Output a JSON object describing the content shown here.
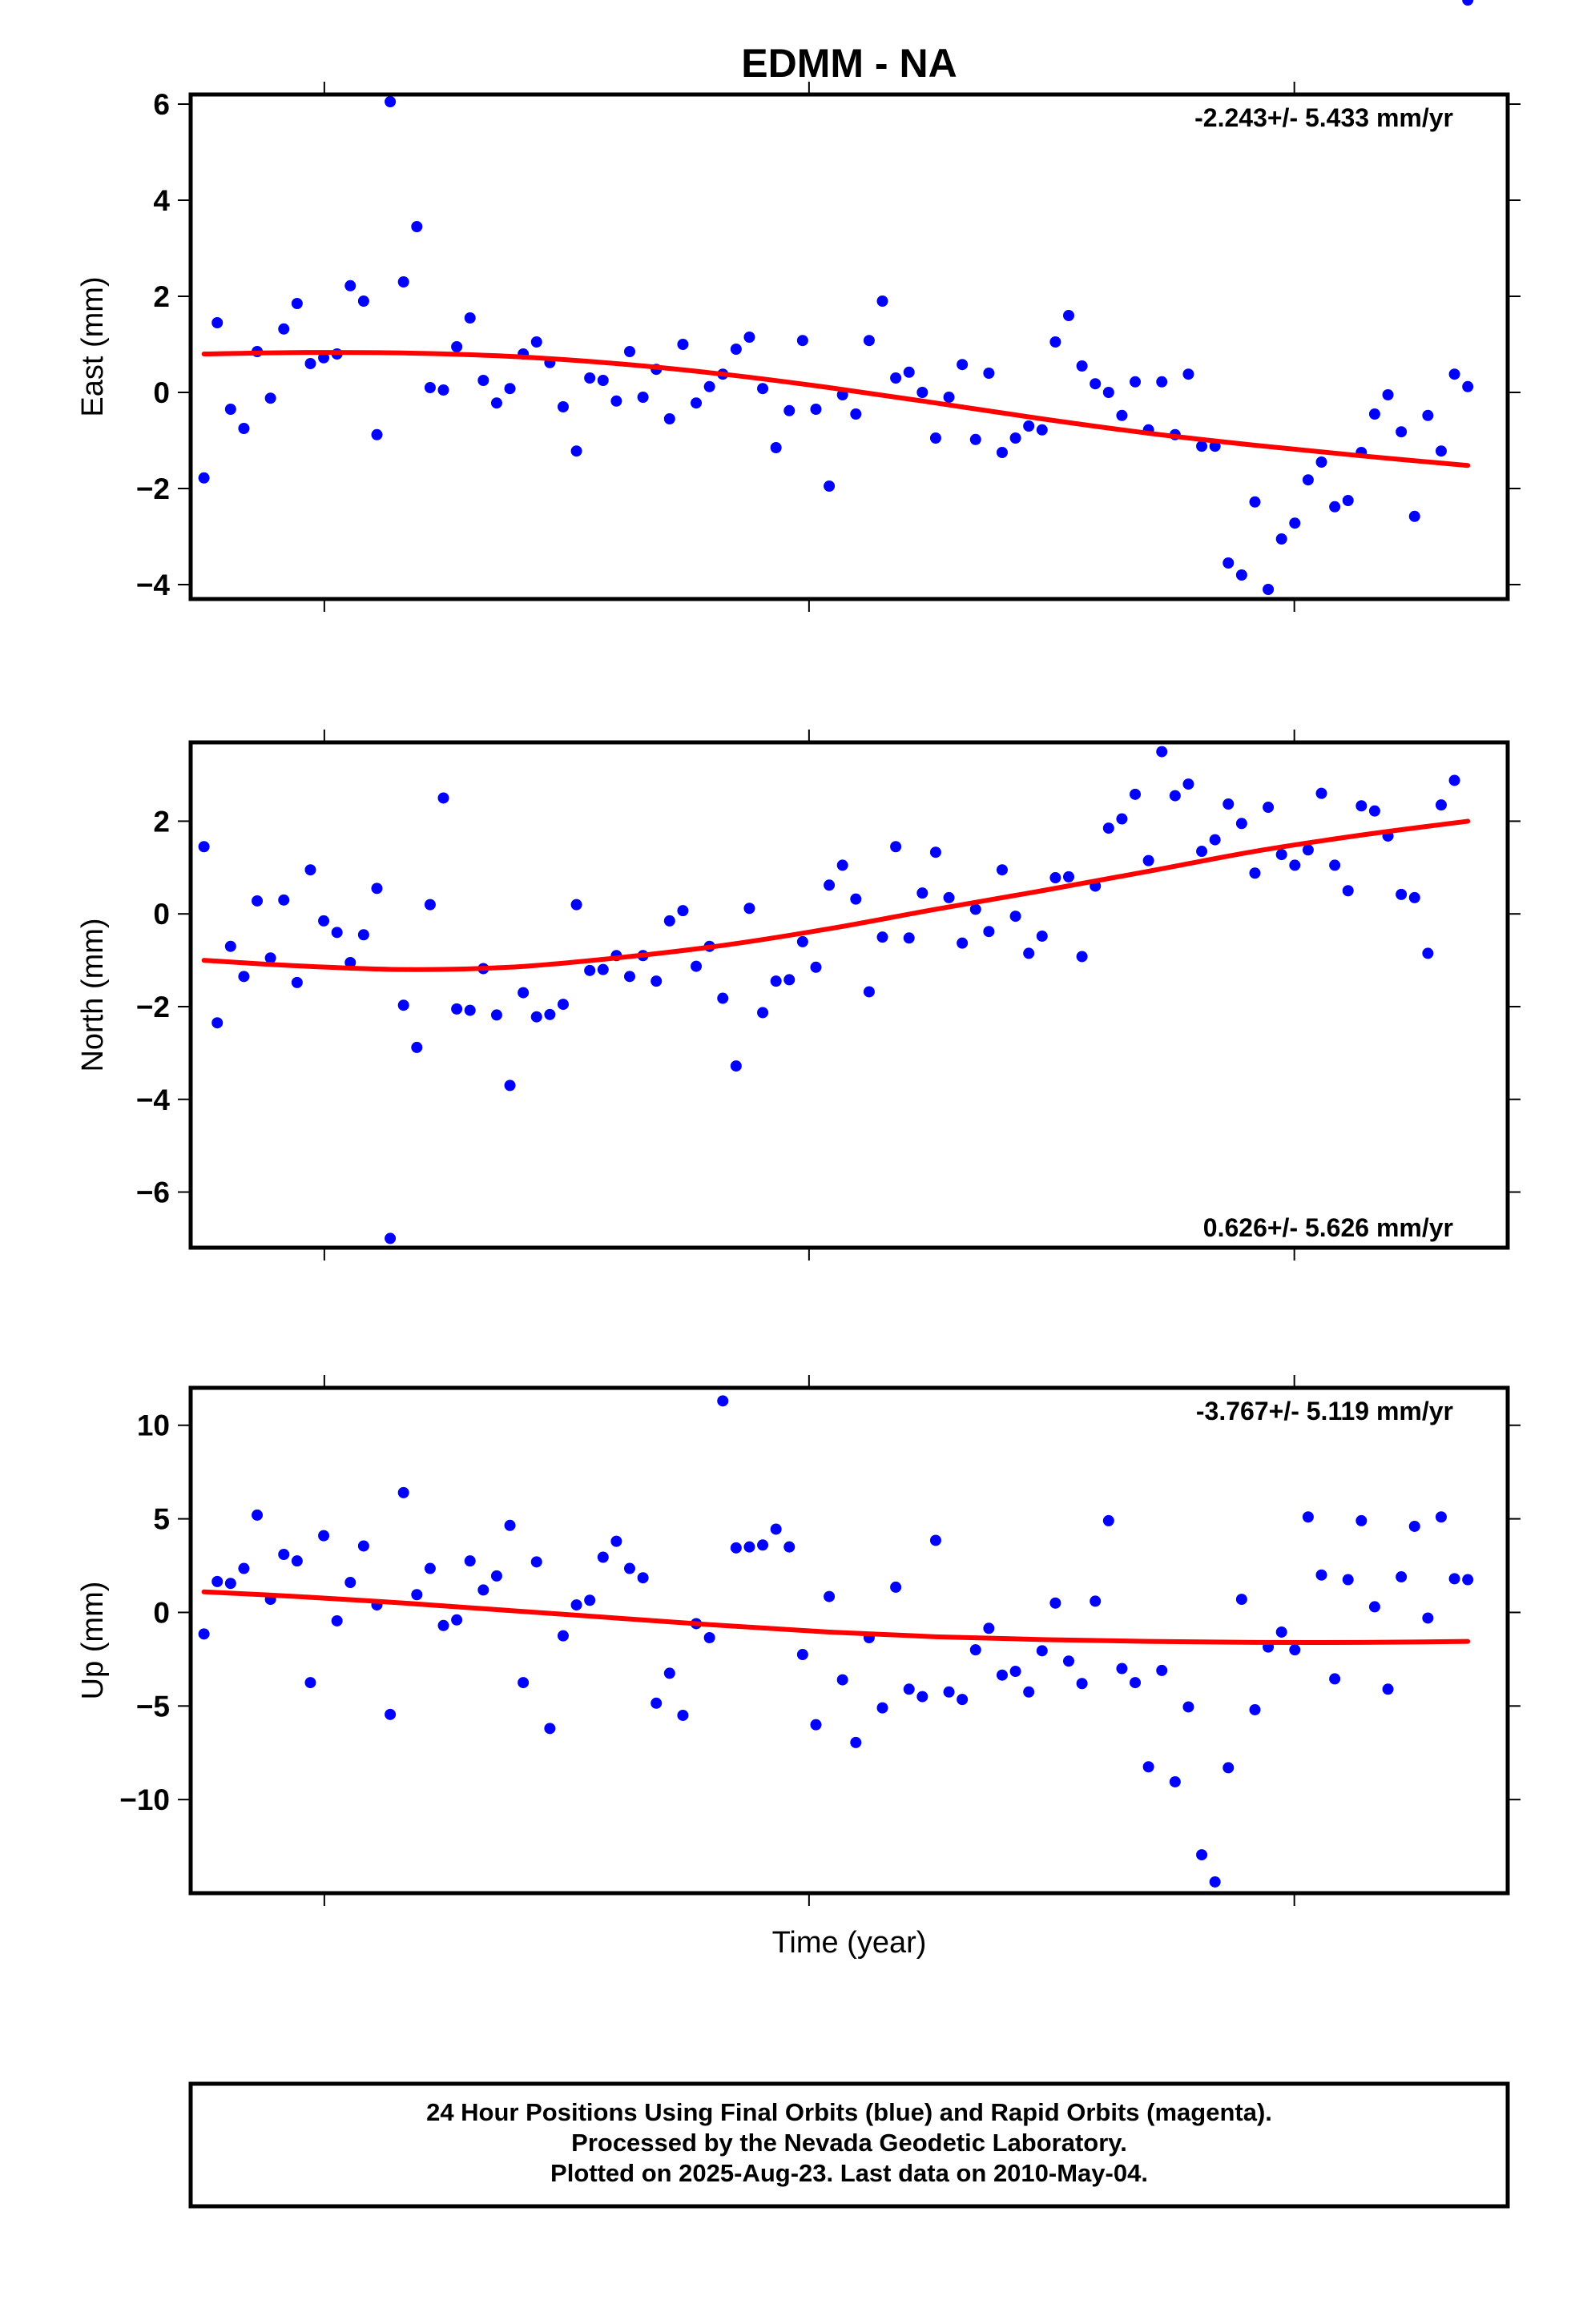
{
  "title": "EDMM - NA",
  "xlabel": "Time (year)",
  "footer": {
    "lines": [
      "24 Hour Positions Using Final Orbits (blue) and Rapid Orbits (magenta).",
      "Processed by the Nevada Geodetic Laboratory.",
      "Plotted on 2025-Aug-23. Last data on 2010-May-04."
    ]
  },
  "colors": {
    "points": "#0000ff",
    "fit": "#ff0000",
    "frame": "#000000"
  },
  "chart_data": [
    {
      "type": "scatter",
      "ylabel": "East (mm)",
      "rate": "-2.243+/- 5.433 mm/yr",
      "rate_position": "top-right",
      "ylim": [
        -4.3,
        6.2
      ],
      "yticks": [
        -4,
        -2,
        0,
        2,
        4,
        6
      ],
      "x": [
        0.25,
        0.5,
        0.75,
        1.0,
        1.25,
        1.5,
        1.75,
        2.0,
        2.25,
        2.5,
        2.75,
        3.0,
        3.25,
        3.5,
        3.75,
        4.0,
        4.25,
        4.5,
        4.75,
        5.0,
        5.25,
        5.5,
        5.75,
        6.0,
        6.25,
        6.5,
        6.75,
        7.0,
        7.25,
        7.5,
        7.75,
        8.0,
        8.25,
        8.5,
        8.75,
        9.0,
        9.25,
        9.5,
        9.75,
        10.0,
        10.25,
        10.5,
        10.75,
        11.0,
        11.25,
        11.5,
        11.75,
        12.0,
        12.25,
        12.5,
        12.75,
        13.0,
        13.25,
        13.5,
        13.75,
        14.0,
        14.25,
        14.5,
        14.75,
        15.0,
        15.25,
        15.5,
        15.75,
        16.0,
        16.25,
        16.5,
        16.75,
        17.0,
        17.25,
        17.5,
        17.75,
        18.0,
        18.25,
        18.5,
        18.75,
        19.0,
        19.25,
        19.5,
        19.75,
        20.0,
        20.25,
        20.5,
        20.75,
        21.0,
        21.25,
        21.5,
        21.75,
        22.0,
        22.25,
        22.5,
        22.75,
        23.0,
        23.25,
        23.5,
        23.75,
        24.0
      ],
      "series": [
        {
          "values": [
            -1.78,
            1.45,
            -0.35,
            -0.75,
            0.85,
            -0.12,
            1.32,
            1.85,
            0.6,
            0.72,
            0.8,
            2.22,
            1.9,
            -0.88,
            6.05,
            2.3,
            3.45,
            0.1,
            0.05,
            0.95,
            1.55,
            0.25,
            -0.22,
            0.08,
            0.8,
            1.05,
            0.62,
            -0.3,
            -1.22,
            0.3,
            0.25,
            -0.18,
            0.85,
            -0.1,
            0.48,
            -0.55,
            1.0,
            -0.22,
            0.12,
            0.38,
            0.9,
            1.15,
            0.08,
            -1.15,
            -0.38,
            1.08,
            -0.35,
            -1.95,
            -0.05,
            -0.45,
            1.08,
            1.9,
            0.3,
            0.42,
            0.0,
            -0.95,
            -0.1,
            0.58,
            -0.98,
            0.4,
            -1.25,
            -0.95,
            -0.7,
            -0.78,
            1.05,
            1.6,
            0.55,
            0.18,
            0.0,
            -0.48,
            0.22,
            -0.78,
            0.22,
            -0.88,
            0.38,
            -1.12,
            -1.12,
            -3.55,
            -3.8,
            -2.28,
            -4.1,
            -3.05,
            -2.72,
            -1.82,
            -1.45,
            -2.38,
            -2.25,
            -1.25,
            -0.45,
            -0.05,
            -0.82,
            -2.58,
            -0.48,
            -1.22,
            0.38,
            0.12
          ]
        }
      ],
      "fit": {
        "x": [
          0.25,
          2.0,
          4.0,
          6.0,
          8.0,
          10.0,
          12.0,
          14.0,
          16.0,
          18.0,
          20.0,
          22.0,
          24.0
        ],
        "y": [
          0.8,
          0.83,
          0.82,
          0.75,
          0.6,
          0.38,
          0.1,
          -0.22,
          -0.55,
          -0.85,
          -1.1,
          -1.32,
          -1.52
        ]
      }
    },
    {
      "type": "scatter",
      "ylabel": "North (mm)",
      "rate": "0.626+/- 5.626 mm/yr",
      "rate_position": "bottom-right",
      "ylim": [
        -7.2,
        3.7
      ],
      "yticks": [
        -6,
        -4,
        -2,
        0,
        2
      ],
      "x": [
        0.25,
        0.5,
        0.75,
        1.0,
        1.25,
        1.5,
        1.75,
        2.0,
        2.25,
        2.5,
        2.75,
        3.0,
        3.25,
        3.5,
        3.75,
        4.0,
        4.25,
        4.5,
        4.75,
        5.0,
        5.25,
        5.5,
        5.75,
        6.0,
        6.25,
        6.5,
        6.75,
        7.0,
        7.25,
        7.5,
        7.75,
        8.0,
        8.25,
        8.5,
        8.75,
        9.0,
        9.25,
        9.5,
        9.75,
        10.0,
        10.25,
        10.5,
        10.75,
        11.0,
        11.25,
        11.5,
        11.75,
        12.0,
        12.25,
        12.5,
        12.75,
        13.0,
        13.25,
        13.5,
        13.75,
        14.0,
        14.25,
        14.5,
        14.75,
        15.0,
        15.25,
        15.5,
        15.75,
        16.0,
        16.25,
        16.5,
        16.75,
        17.0,
        17.25,
        17.5,
        17.75,
        18.0,
        18.25,
        18.5,
        18.75,
        19.0,
        19.25,
        19.5,
        19.75,
        20.0,
        20.25,
        20.5,
        20.75,
        21.0,
        21.25,
        21.5,
        21.75,
        22.0,
        22.25,
        22.5,
        22.75,
        23.0,
        23.25,
        23.5,
        23.75,
        24.0
      ],
      "series": [
        {
          "values": [
            1.45,
            -2.35,
            -0.7,
            -1.35,
            0.28,
            -0.95,
            0.3,
            -1.48,
            0.95,
            -0.15,
            -0.4,
            -1.05,
            -0.45,
            0.55,
            -7.0,
            -1.97,
            -2.88,
            0.2,
            2.5,
            -2.05,
            -2.08,
            -1.18,
            -2.18,
            -3.7,
            -1.7,
            -2.22,
            -2.17,
            -1.95,
            0.2,
            -1.22,
            -1.2,
            -0.9,
            -1.35,
            -0.9,
            -1.45,
            -0.15,
            0.07,
            -1.13,
            -0.7,
            -1.82,
            -3.28,
            0.12,
            -2.13,
            -1.45,
            -1.42,
            -0.6,
            -1.15,
            0.62,
            1.05,
            0.32,
            -1.68,
            -0.5,
            1.45,
            -0.52,
            0.45,
            1.33,
            0.35,
            -0.63,
            0.1,
            -0.38,
            0.95,
            -0.05,
            -0.85,
            -0.48,
            0.78,
            0.8,
            -0.92,
            0.6,
            1.85,
            2.05,
            2.58,
            1.15,
            3.5,
            2.55,
            2.8,
            1.35,
            1.6,
            2.37,
            1.95,
            0.88,
            2.3,
            1.28,
            1.05,
            1.38,
            2.6,
            1.05,
            0.5,
            2.33,
            2.22,
            1.68,
            0.42,
            0.35,
            -0.85,
            2.35,
            2.88
          ]
        }
      ],
      "fit": {
        "x": [
          0.25,
          2.0,
          4.0,
          6.0,
          8.0,
          10.0,
          12.0,
          14.0,
          16.0,
          18.0,
          20.0,
          22.0,
          24.0
        ],
        "y": [
          -1.0,
          -1.12,
          -1.2,
          -1.15,
          -0.95,
          -0.68,
          -0.32,
          0.1,
          0.5,
          0.92,
          1.35,
          1.7,
          2.0
        ]
      }
    },
    {
      "type": "scatter",
      "ylabel": "Up (mm)",
      "rate": "-3.767+/- 5.119 mm/yr",
      "rate_position": "top-right",
      "ylim": [
        -15.0,
        12.0
      ],
      "yticks": [
        -10,
        -5,
        0,
        5,
        10
      ],
      "x": [
        0.25,
        0.5,
        0.75,
        1.0,
        1.25,
        1.5,
        1.75,
        2.0,
        2.25,
        2.5,
        2.75,
        3.0,
        3.25,
        3.5,
        3.75,
        4.0,
        4.25,
        4.5,
        4.75,
        5.0,
        5.25,
        5.5,
        5.75,
        6.0,
        6.25,
        6.5,
        6.75,
        7.0,
        7.25,
        7.5,
        7.75,
        8.0,
        8.25,
        8.5,
        8.75,
        9.0,
        9.25,
        9.5,
        9.75,
        10.0,
        10.25,
        10.5,
        10.75,
        11.0,
        11.25,
        11.5,
        11.75,
        12.0,
        12.25,
        12.5,
        12.75,
        13.0,
        13.25,
        13.5,
        13.75,
        14.0,
        14.25,
        14.5,
        14.75,
        15.0,
        15.25,
        15.5,
        15.75,
        16.0,
        16.25,
        16.5,
        16.75,
        17.0,
        17.25,
        17.5,
        17.75,
        18.0,
        18.25,
        18.5,
        18.75,
        19.0,
        19.25,
        19.5,
        19.75,
        20.0,
        20.25,
        20.5,
        20.75,
        21.0,
        21.25,
        21.5,
        21.75,
        22.0,
        22.25,
        22.5,
        22.75,
        23.0,
        23.25,
        23.5,
        23.75,
        24.0
      ],
      "series": [
        {
          "values": [
            -1.15,
            1.65,
            1.55,
            2.35,
            5.2,
            0.7,
            3.1,
            2.75,
            -3.75,
            4.1,
            -0.45,
            1.6,
            3.55,
            0.4,
            -5.45,
            6.4,
            0.95,
            2.35,
            -0.7,
            -0.4,
            2.75,
            1.2,
            1.95,
            4.65,
            -3.75,
            2.7,
            -6.2,
            -1.25,
            0.4,
            0.65,
            2.95,
            3.8,
            2.35,
            1.85,
            -4.85,
            -3.25,
            -5.5,
            -0.6,
            -1.35,
            11.3,
            3.45,
            3.5,
            3.6,
            4.45,
            3.5,
            -2.25,
            -6.0,
            0.85,
            -3.6,
            -6.95,
            -1.35,
            -5.1,
            1.35,
            -4.1,
            -4.5,
            3.85,
            -4.25,
            -4.65,
            -2.0,
            -0.85,
            -3.35,
            -3.15,
            -4.25,
            -2.05,
            0.5,
            -2.6,
            -3.8,
            0.6,
            4.9,
            -3.0,
            -3.75,
            -8.25,
            -3.1,
            -9.05,
            -5.05,
            -12.95,
            -14.4,
            -8.3,
            0.7,
            -5.2,
            -1.85,
            -1.05,
            -2.0,
            5.1,
            2.0,
            -3.55,
            1.75,
            4.9,
            0.3,
            -4.1,
            1.9,
            4.6,
            -0.3,
            5.1,
            1.8,
            1.75
          ]
        }
      ],
      "fit": {
        "x": [
          0.25,
          2.0,
          4.0,
          6.0,
          8.0,
          10.0,
          12.0,
          14.0,
          16.0,
          18.0,
          20.0,
          22.0,
          24.0
        ],
        "y": [
          1.1,
          0.85,
          0.5,
          0.1,
          -0.3,
          -0.7,
          -1.05,
          -1.3,
          -1.45,
          -1.55,
          -1.6,
          -1.6,
          -1.55
        ]
      }
    }
  ]
}
